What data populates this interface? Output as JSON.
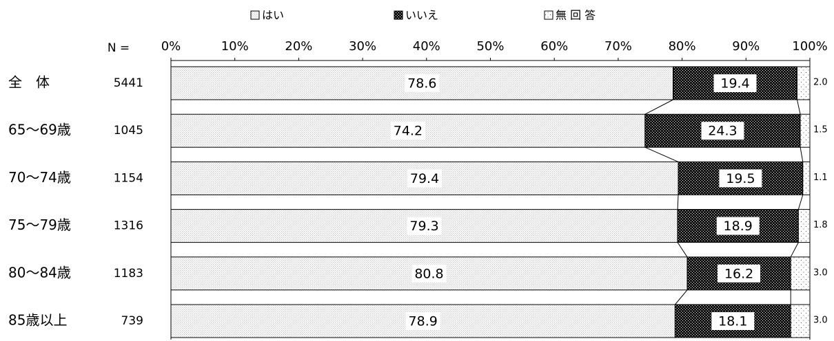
{
  "chart_data": {
    "type": "stacked_bar_horizontal",
    "n_label": "N =",
    "categories": [
      "全　体",
      "65～69歳",
      "70～74歳",
      "75～79歳",
      "80～84歳",
      "85歳以上"
    ],
    "n": [
      "5441",
      "1045",
      "1154",
      "1316",
      "1183",
      "739"
    ],
    "series": [
      {
        "name": "はい",
        "color": "#c8c8c8",
        "values": [
          78.6,
          74.2,
          79.4,
          79.3,
          80.8,
          78.9
        ]
      },
      {
        "name": "いいえ",
        "color": "#111111",
        "values": [
          19.4,
          24.3,
          19.5,
          18.9,
          16.2,
          18.1
        ]
      },
      {
        "name": "無 回 答",
        "color": "#ffffff",
        "values": [
          2.0,
          1.5,
          1.1,
          1.8,
          3.0,
          3.0
        ],
        "value_labels": [
          "2.0",
          "1.5",
          "1.1",
          "1.8",
          "3.0",
          "3.0"
        ]
      }
    ],
    "xlim": [
      0,
      100
    ],
    "xticks": [
      {
        "value": 0,
        "label": "0%"
      },
      {
        "value": 10,
        "label": "10%"
      },
      {
        "value": 20,
        "label": "20%"
      },
      {
        "value": 30,
        "label": "30%"
      },
      {
        "value": 40,
        "label": "40%"
      },
      {
        "value": 50,
        "label": "50%"
      },
      {
        "value": 60,
        "label": "60%"
      },
      {
        "value": 70,
        "label": "70%"
      },
      {
        "value": 80,
        "label": "80%"
      },
      {
        "value": 90,
        "label": "90%"
      },
      {
        "value": 100,
        "label": "100%"
      }
    ]
  }
}
